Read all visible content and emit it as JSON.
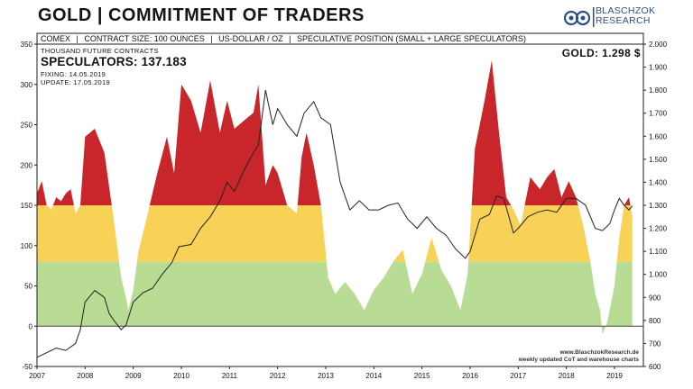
{
  "title": "GOLD | COMMITMENT OF TRADERS",
  "logo": {
    "line1": "BLASCHZOK",
    "line2": "RESEARCH",
    "icon": "blaschzok-logo-icon"
  },
  "header": {
    "items": [
      "COMEX",
      "CONTRACT SIZE: 100 OUNCES",
      "US-DOLLAR / OZ",
      "SPECULATIVE POSITION (SMALL + LARGE SPECULATORS)"
    ],
    "separator": "|"
  },
  "info": {
    "units": "THOUSAND FUTURE CONTRACTS",
    "speculators": "SPECULATORS: 137.183",
    "fixing": "FIXING: 14.05.2019",
    "update": "UPDATE: 17.05.2019",
    "gold": "GOLD: 1.298 $"
  },
  "watermark": {
    "line1": "www.BlaschzokResearch.de",
    "line2": "weekly updated CoT and warehouse charts"
  },
  "colors": {
    "red": "#c8262a",
    "yellow": "#f7d257",
    "green": "#b9dc95",
    "line": "#222222",
    "zero": "#444444"
  },
  "chart_data": {
    "type": "area",
    "title": "GOLD | COMMITMENT OF TRADERS",
    "x_ticks": [
      "2007",
      "2008",
      "2009",
      "2010",
      "2011",
      "2012",
      "2013",
      "2014",
      "2015",
      "2016",
      "2017",
      "2018",
      "2019"
    ],
    "y_left_ticks": [
      "350",
      "300",
      "250",
      "200",
      "150",
      "100",
      "50",
      "0",
      "-50"
    ],
    "y_right_ticks": [
      "2.000",
      "1.900",
      "1.800",
      "1.700",
      "1.600",
      "1.500",
      "1.400",
      "1.300",
      "1.200",
      "1.100",
      "1.000",
      "900",
      "800",
      "700",
      "600"
    ],
    "y_left_range": [
      -50,
      350
    ],
    "y_right_range": [
      600,
      2000
    ],
    "color_bands": [
      {
        "from": 0,
        "to": 80,
        "color": "green"
      },
      {
        "from": 80,
        "to": 150,
        "color": "yellow"
      },
      {
        "from": 150,
        "to": 350,
        "color": "red"
      }
    ],
    "series": [
      {
        "type": "area",
        "axis": "left",
        "x": [
          2007.0,
          2007.1,
          2007.2,
          2007.3,
          2007.4,
          2007.5,
          2007.6,
          2007.7,
          2007.8,
          2007.9,
          2008.0,
          2008.2,
          2008.4,
          2008.6,
          2008.75,
          2008.85,
          2008.9,
          2009.0,
          2009.1,
          2009.3,
          2009.5,
          2009.7,
          2009.85,
          2010.0,
          2010.2,
          2010.4,
          2010.6,
          2010.8,
          2010.95,
          2011.1,
          2011.3,
          2011.5,
          2011.6,
          2011.75,
          2011.9,
          2012.0,
          2012.2,
          2012.4,
          2012.5,
          2012.6,
          2012.75,
          2012.9,
          2013.05,
          2013.2,
          2013.4,
          2013.6,
          2013.8,
          2014.0,
          2014.2,
          2014.4,
          2014.6,
          2014.8,
          2015.0,
          2015.2,
          2015.4,
          2015.6,
          2015.8,
          2015.95,
          2016.1,
          2016.3,
          2016.45,
          2016.6,
          2016.75,
          2016.9,
          2017.05,
          2017.25,
          2017.45,
          2017.6,
          2017.75,
          2017.9,
          2018.05,
          2018.2,
          2018.35,
          2018.5,
          2018.6,
          2018.7,
          2018.75,
          2018.85,
          2019.0,
          2019.1,
          2019.2,
          2019.3,
          2019.37
        ],
        "y": [
          165,
          180,
          150,
          145,
          160,
          155,
          165,
          170,
          140,
          150,
          235,
          245,
          215,
          130,
          60,
          35,
          20,
          45,
          90,
          140,
          190,
          235,
          190,
          300,
          280,
          240,
          305,
          240,
          280,
          245,
          255,
          265,
          300,
          175,
          200,
          190,
          150,
          140,
          210,
          240,
          200,
          150,
          60,
          40,
          55,
          40,
          20,
          45,
          60,
          80,
          95,
          40,
          65,
          110,
          70,
          50,
          20,
          65,
          220,
          280,
          330,
          240,
          160,
          145,
          125,
          185,
          170,
          185,
          195,
          160,
          180,
          160,
          125,
          80,
          40,
          20,
          -10,
          5,
          50,
          110,
          150,
          160,
          137
        ]
      },
      {
        "type": "line",
        "axis": "right",
        "name": "Gold",
        "x": [
          2007.0,
          2007.2,
          2007.4,
          2007.6,
          2007.8,
          2007.9,
          2008.0,
          2008.2,
          2008.4,
          2008.5,
          2008.6,
          2008.75,
          2008.85,
          2009.0,
          2009.2,
          2009.4,
          2009.6,
          2009.8,
          2009.95,
          2010.2,
          2010.4,
          2010.6,
          2010.8,
          2010.95,
          2011.1,
          2011.3,
          2011.5,
          2011.6,
          2011.75,
          2011.9,
          2012.0,
          2012.2,
          2012.4,
          2012.55,
          2012.75,
          2012.9,
          2013.1,
          2013.3,
          2013.5,
          2013.7,
          2013.9,
          2014.1,
          2014.3,
          2014.5,
          2014.7,
          2014.9,
          2015.1,
          2015.3,
          2015.5,
          2015.7,
          2015.9,
          2016.0,
          2016.2,
          2016.4,
          2016.55,
          2016.7,
          2016.9,
          2017.0,
          2017.2,
          2017.4,
          2017.6,
          2017.8,
          2018.0,
          2018.2,
          2018.4,
          2018.6,
          2018.75,
          2018.9,
          2019.0,
          2019.1,
          2019.2,
          2019.3,
          2019.37
        ],
        "y": [
          640,
          660,
          680,
          670,
          700,
          760,
          880,
          930,
          900,
          830,
          800,
          760,
          780,
          880,
          920,
          940,
          1000,
          1050,
          1120,
          1130,
          1200,
          1250,
          1320,
          1400,
          1360,
          1450,
          1530,
          1560,
          1800,
          1650,
          1720,
          1650,
          1600,
          1700,
          1750,
          1680,
          1650,
          1400,
          1280,
          1320,
          1280,
          1280,
          1300,
          1310,
          1240,
          1200,
          1250,
          1200,
          1170,
          1110,
          1070,
          1100,
          1240,
          1260,
          1340,
          1330,
          1180,
          1200,
          1250,
          1270,
          1280,
          1270,
          1330,
          1330,
          1300,
          1200,
          1190,
          1220,
          1280,
          1330,
          1300,
          1280,
          1298
        ]
      }
    ],
    "legend": "none",
    "grid": false
  }
}
